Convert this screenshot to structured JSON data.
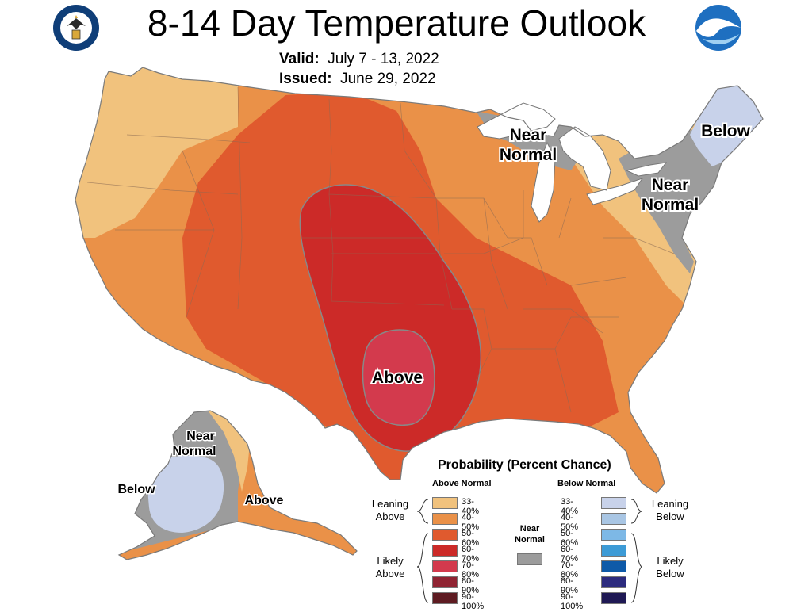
{
  "title": "8-14 Day Temperature Outlook",
  "valid_label": "Valid:",
  "valid_value": "July 7 - 13, 2022",
  "issued_label": "Issued:",
  "issued_value": "June 29, 2022",
  "map_labels": {
    "near_normal_great_lakes": [
      "Near",
      "Normal"
    ],
    "below_northeast": "Below",
    "near_normal_northeast": [
      "Near",
      "Normal"
    ],
    "above_texas": "Above",
    "near_normal_alaska": [
      "Near",
      "Normal"
    ],
    "below_alaska": "Below",
    "above_alaska": "Above"
  },
  "legend": {
    "title": "Probability (Percent Chance)",
    "above_header": "Above Normal",
    "below_header": "Below Normal",
    "near_label": [
      "Near",
      "Normal"
    ],
    "leaning_above": [
      "Leaning",
      "Above"
    ],
    "likely_above": [
      "Likely",
      "Above"
    ],
    "leaning_below": [
      "Leaning",
      "Below"
    ],
    "likely_below": [
      "Likely",
      "Below"
    ],
    "above": [
      {
        "label": "33-40%",
        "color": "#f1c27d"
      },
      {
        "label": "40-50%",
        "color": "#ea9148"
      },
      {
        "label": "50-60%",
        "color": "#e05a2e"
      },
      {
        "label": "60-70%",
        "color": "#cc2a28"
      },
      {
        "label": "70-80%",
        "color": "#d33a4d"
      },
      {
        "label": "80-90%",
        "color": "#8f2332"
      },
      {
        "label": "90-100%",
        "color": "#5e1b22"
      }
    ],
    "below": [
      {
        "label": "33-40%",
        "color": "#c8d2ea"
      },
      {
        "label": "40-50%",
        "color": "#a9c6e4"
      },
      {
        "label": "50-60%",
        "color": "#7db8e6"
      },
      {
        "label": "60-70%",
        "color": "#3d9bd6"
      },
      {
        "label": "70-80%",
        "color": "#0e5aa8"
      },
      {
        "label": "80-90%",
        "color": "#2c2b7e"
      },
      {
        "label": "90-100%",
        "color": "#1f1954"
      }
    ],
    "near_color": "#9c9c9c"
  },
  "colors": {
    "above_33_40": "#f1c27d",
    "above_40_50": "#ea9148",
    "above_50_60": "#e05a2e",
    "above_60_70": "#cc2a28",
    "above_70_80": "#d33a4d",
    "near_normal": "#9c9c9c",
    "below_33_40": "#c8d2ea"
  }
}
